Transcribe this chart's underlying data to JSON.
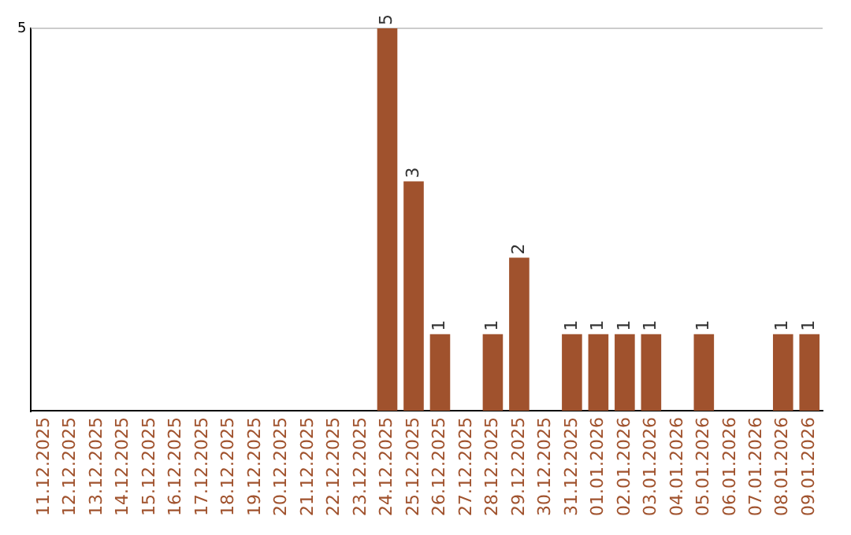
{
  "chart_data": {
    "type": "bar",
    "ylim": [
      0,
      5
    ],
    "categories": [
      "11.12.2025",
      "12.12.2025",
      "13.12.2025",
      "14.12.2025",
      "15.12.2025",
      "16.12.2025",
      "17.12.2025",
      "18.12.2025",
      "19.12.2025",
      "20.12.2025",
      "21.12.2025",
      "22.12.2025",
      "23.12.2025",
      "24.12.2025",
      "25.12.2025",
      "26.12.2025",
      "27.12.2025",
      "28.12.2025",
      "29.12.2025",
      "30.12.2025",
      "31.12.2025",
      "01.01.2026",
      "02.01.2026",
      "03.01.2026",
      "04.01.2026",
      "05.01.2026",
      "06.01.2026",
      "07.01.2026",
      "08.01.2026",
      "09.01.2026"
    ],
    "values": [
      null,
      null,
      null,
      null,
      null,
      null,
      null,
      null,
      null,
      null,
      null,
      null,
      null,
      5,
      3,
      1,
      null,
      1,
      2,
      null,
      1,
      1,
      1,
      1,
      null,
      1,
      null,
      null,
      1,
      1
    ],
    "value_labels": [
      null,
      null,
      null,
      null,
      null,
      null,
      null,
      null,
      null,
      null,
      null,
      null,
      null,
      "5",
      "3",
      "1",
      null,
      "1",
      "2",
      null,
      "1",
      "1",
      "1",
      "1",
      null,
      "1",
      null,
      null,
      "1",
      "1"
    ],
    "color": "#a0522d",
    "yticks": [
      {
        "value": 0,
        "label": null
      },
      5
    ],
    "ref_lines": [
      {
        "axis": "y",
        "value": 5,
        "color": "#cccccc"
      }
    ],
    "legend": false
  }
}
